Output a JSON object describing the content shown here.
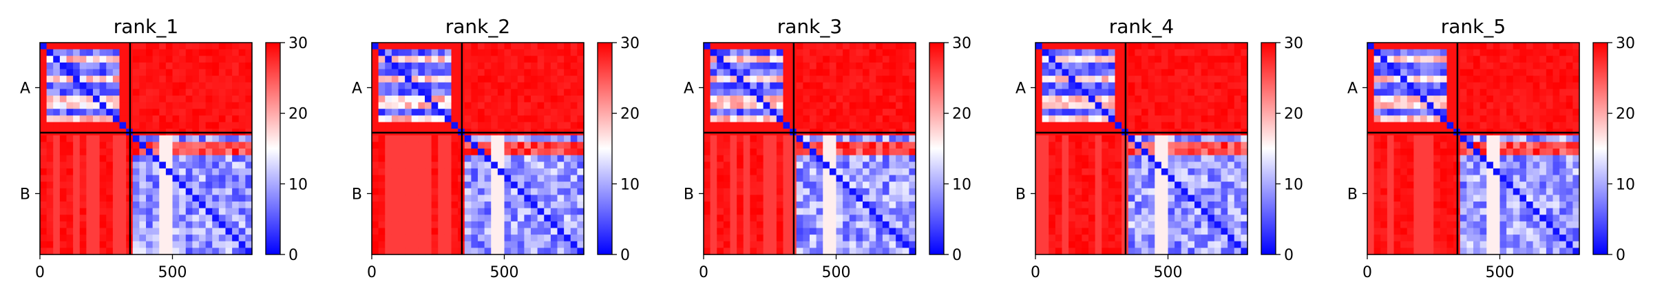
{
  "chart_data": [
    {
      "type": "heatmap",
      "title": "rank_1",
      "x_ticks": [
        0,
        500
      ],
      "y_ticks": [
        "A",
        "B"
      ],
      "colorbar": {
        "range": [
          0,
          30
        ],
        "ticks": [
          0,
          10,
          20,
          30
        ],
        "colormap": "bwr"
      },
      "chain_boundary": 340,
      "length": 800,
      "grid": false
    },
    {
      "type": "heatmap",
      "title": "rank_2",
      "x_ticks": [
        0,
        500
      ],
      "y_ticks": [
        "A",
        "B"
      ],
      "colorbar": {
        "range": [
          0,
          30
        ],
        "ticks": [
          0,
          10,
          20,
          30
        ],
        "colormap": "bwr"
      },
      "chain_boundary": 340,
      "length": 800,
      "grid": false
    },
    {
      "type": "heatmap",
      "title": "rank_3",
      "x_ticks": [
        0,
        500
      ],
      "y_ticks": [
        "A",
        "B"
      ],
      "colorbar": {
        "range": [
          0,
          30
        ],
        "ticks": [
          0,
          10,
          20,
          30
        ],
        "colormap": "bwr"
      },
      "chain_boundary": 340,
      "length": 800,
      "grid": false
    },
    {
      "type": "heatmap",
      "title": "rank_4",
      "x_ticks": [
        0,
        500
      ],
      "y_ticks": [
        "A",
        "B"
      ],
      "colorbar": {
        "range": [
          0,
          30
        ],
        "ticks": [
          0,
          10,
          20,
          30
        ],
        "colormap": "bwr"
      },
      "chain_boundary": 340,
      "length": 800,
      "grid": false
    },
    {
      "type": "heatmap",
      "title": "rank_5",
      "x_ticks": [
        0,
        500
      ],
      "y_ticks": [
        "A",
        "B"
      ],
      "colorbar": {
        "range": [
          0,
          30
        ],
        "ticks": [
          0,
          10,
          20,
          30
        ],
        "colormap": "bwr"
      },
      "chain_boundary": 340,
      "length": 800,
      "grid": false
    }
  ],
  "colors": {
    "high": "#ff0000",
    "mid": "#ffffff",
    "low": "#0000ff",
    "frame": "#000000"
  }
}
